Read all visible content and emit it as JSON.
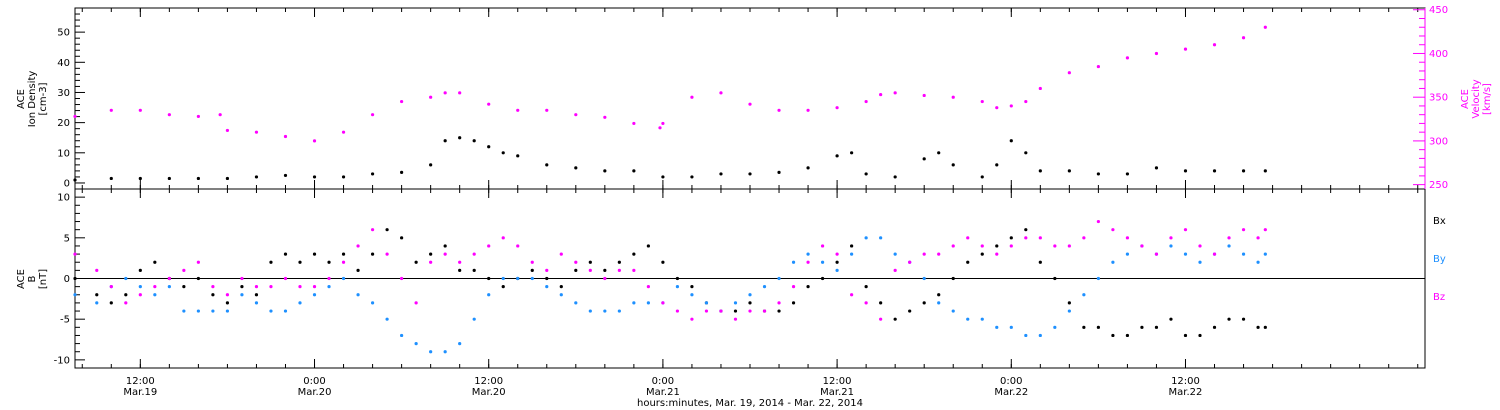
{
  "colors": {
    "black": "#000000",
    "magenta": "#ff00ff",
    "blue": "#1e90ff"
  },
  "x_axis": {
    "title": "hours:minutes, Mar. 19, 2014 - Mar. 22, 2014",
    "range_hours": [
      7.5,
      100.5
    ],
    "ticks": [
      {
        "hours": 12,
        "time": "12:00",
        "date": "Mar.19"
      },
      {
        "hours": 24,
        "time": "0:00",
        "date": "Mar.20"
      },
      {
        "hours": 36,
        "time": "12:00",
        "date": "Mar.20"
      },
      {
        "hours": 48,
        "time": "0:00",
        "date": "Mar.21"
      },
      {
        "hours": 60,
        "time": "12:00",
        "date": "Mar.21"
      },
      {
        "hours": 72,
        "time": "0:00",
        "date": "Mar.22"
      },
      {
        "hours": 84,
        "time": "12:00",
        "date": "Mar.22"
      }
    ]
  },
  "chart_data": [
    {
      "type": "scatter",
      "panel": "top",
      "ylabel_left": [
        "ACE",
        "Ion Density",
        "[cm-3]"
      ],
      "ylabel_right": [
        "ACE",
        "Velocity",
        "[km/s]"
      ],
      "ylim_left": [
        -2,
        58
      ],
      "ylim_right": [
        245,
        452
      ],
      "yticks_left": [
        0,
        10,
        20,
        30,
        40,
        50
      ],
      "yticks_right": [
        250,
        300,
        350,
        400,
        450
      ],
      "series": [
        {
          "axis": "left",
          "color": "#000000",
          "x": [
            7.5,
            10,
            12,
            14,
            16,
            18,
            20,
            22,
            24,
            26,
            28,
            30,
            32,
            33,
            34,
            35,
            36,
            37,
            38,
            40,
            42,
            44,
            46,
            48,
            50,
            52,
            54,
            56,
            58,
            60,
            61,
            62,
            64,
            66,
            67,
            68,
            70,
            71,
            72,
            73,
            74,
            76,
            78,
            80,
            82,
            84,
            86,
            88,
            89.5
          ],
          "y": [
            1,
            1.5,
            1.5,
            1.5,
            1.5,
            1.5,
            2,
            2.5,
            2,
            2,
            3,
            3.5,
            6,
            14,
            15,
            14,
            12,
            10,
            9,
            6,
            5,
            4,
            4,
            2,
            2,
            3,
            3,
            3.5,
            5,
            9,
            10,
            3,
            2,
            8,
            10,
            6,
            2,
            6,
            14,
            10,
            4,
            4,
            3,
            3,
            5,
            4,
            4,
            4,
            4
          ]
        },
        {
          "axis": "right",
          "color": "#ff00ff",
          "x": [
            7.5,
            10,
            12,
            14,
            16,
            17.5,
            18,
            20,
            22,
            24,
            26,
            28,
            30,
            32,
            33,
            34,
            36,
            38,
            40,
            42,
            44,
            46,
            47.8,
            48,
            50,
            52,
            54,
            56,
            58,
            60,
            62,
            63,
            64,
            66,
            68,
            70,
            71,
            72,
            73,
            74,
            76,
            78,
            80,
            82,
            84,
            86,
            88,
            89.5
          ],
          "y": [
            328,
            335,
            335,
            330,
            328,
            330,
            312,
            310,
            305,
            300,
            310,
            330,
            345,
            350,
            355,
            355,
            342,
            335,
            335,
            330,
            327,
            320,
            315,
            320,
            350,
            355,
            342,
            335,
            335,
            338,
            345,
            353,
            355,
            352,
            350,
            345,
            338,
            340,
            345,
            360,
            378,
            385,
            395,
            400,
            405,
            410,
            418,
            430
          ]
        }
      ]
    },
    {
      "type": "scatter",
      "panel": "bottom",
      "ylabel_left": [
        "ACE",
        "B",
        "[nT]"
      ],
      "ylim": [
        -11,
        11
      ],
      "yticks": [
        -10,
        -5,
        0,
        5,
        10
      ],
      "legend": [
        "Bx",
        "By",
        "Bz"
      ],
      "series": [
        {
          "name": "Bx",
          "color": "#000000",
          "x": [
            7.5,
            9,
            10,
            11,
            12,
            13,
            14,
            15,
            16,
            17,
            18,
            19,
            20,
            21,
            22,
            23,
            24,
            25,
            26,
            27,
            28,
            29,
            30,
            31,
            32,
            33,
            34,
            35,
            36,
            37,
            38,
            39,
            40,
            41,
            42,
            43,
            44,
            45,
            46,
            47,
            48,
            49,
            50,
            51,
            52,
            53,
            54,
            55,
            56,
            57,
            58,
            59,
            60,
            61,
            62,
            63,
            64,
            65,
            66,
            67,
            68,
            69,
            70,
            71,
            72,
            73,
            74,
            75,
            76,
            77,
            78,
            79,
            80,
            81,
            82,
            83,
            84,
            85,
            86,
            87,
            88,
            89,
            89.5
          ],
          "y": [
            0,
            -2,
            -3,
            -2,
            1,
            2,
            0,
            -1,
            0,
            -2,
            -3,
            -1,
            -2,
            2,
            3,
            2,
            3,
            2,
            3,
            1,
            3,
            6,
            5,
            2,
            3,
            4,
            1,
            1,
            0,
            -1,
            0,
            1,
            0,
            -1,
            1,
            2,
            1,
            2,
            3,
            4,
            2,
            0,
            -1,
            -3,
            -4,
            -4,
            -3,
            -4,
            -4,
            -3,
            -1,
            0,
            2,
            4,
            -1,
            -3,
            -5,
            -4,
            -3,
            -2,
            0,
            2,
            3,
            4,
            5,
            6,
            2,
            0,
            -3,
            -6,
            -6,
            -7,
            -7,
            -6,
            -6,
            -5,
            -7,
            -7,
            -6,
            -5,
            -5,
            -6,
            -6
          ]
        },
        {
          "name": "By",
          "color": "#1e90ff",
          "x": [
            7.5,
            9,
            10,
            11,
            12,
            13,
            14,
            15,
            16,
            17,
            18,
            19,
            20,
            21,
            22,
            23,
            24,
            25,
            26,
            27,
            28,
            29,
            30,
            31,
            32,
            33,
            34,
            35,
            36,
            37,
            38,
            39,
            40,
            41,
            42,
            43,
            44,
            45,
            46,
            47,
            48,
            49,
            50,
            51,
            52,
            53,
            54,
            55,
            56,
            57,
            58,
            59,
            60,
            61,
            62,
            63,
            64,
            65,
            66,
            67,
            68,
            69,
            70,
            71,
            72,
            73,
            74,
            75,
            76,
            77,
            78,
            79,
            80,
            81,
            82,
            83,
            84,
            85,
            86,
            87,
            88,
            89,
            89.5
          ],
          "y": [
            -2,
            -3,
            -1,
            0,
            -1,
            -2,
            -1,
            -4,
            -4,
            -4,
            -4,
            -2,
            -3,
            -4,
            -4,
            -3,
            -2,
            -1,
            0,
            -2,
            -3,
            -5,
            -7,
            -8,
            -9,
            -9,
            -8,
            -5,
            -2,
            0,
            0,
            0,
            -1,
            -2,
            -3,
            -4,
            -4,
            -4,
            -3,
            -3,
            -3,
            -1,
            -2,
            -3,
            -4,
            -3,
            -2,
            -1,
            0,
            2,
            3,
            2,
            1,
            3,
            5,
            5,
            3,
            2,
            0,
            -3,
            -4,
            -5,
            -5,
            -6,
            -6,
            -7,
            -7,
            -6,
            -4,
            -2,
            0,
            2,
            3,
            4,
            3,
            4,
            3,
            2,
            3,
            4,
            3,
            2,
            3
          ]
        },
        {
          "name": "Bz",
          "color": "#ff00ff",
          "x": [
            7.5,
            9,
            10,
            11,
            12,
            13,
            14,
            15,
            16,
            17,
            18,
            19,
            20,
            21,
            22,
            23,
            24,
            25,
            26,
            27,
            28,
            29,
            30,
            31,
            32,
            33,
            34,
            35,
            36,
            37,
            38,
            39,
            40,
            41,
            42,
            43,
            44,
            45,
            46,
            47,
            48,
            49,
            50,
            51,
            52,
            53,
            54,
            55,
            56,
            57,
            58,
            59,
            60,
            61,
            62,
            63,
            64,
            65,
            66,
            67,
            68,
            69,
            70,
            71,
            72,
            73,
            74,
            75,
            76,
            77,
            78,
            79,
            80,
            81,
            82,
            83,
            84,
            85,
            86,
            87,
            88,
            89,
            89.5
          ],
          "y": [
            3,
            1,
            -1,
            -3,
            -2,
            -1,
            0,
            1,
            2,
            -1,
            -2,
            0,
            -1,
            -1,
            0,
            -1,
            -1,
            0,
            2,
            4,
            6,
            3,
            0,
            -3,
            2,
            3,
            2,
            3,
            4,
            5,
            4,
            2,
            1,
            3,
            2,
            1,
            0,
            1,
            1,
            -1,
            -3,
            -4,
            -5,
            -4,
            -4,
            -5,
            -4,
            -4,
            -3,
            -1,
            2,
            4,
            3,
            -2,
            -3,
            -5,
            1,
            2,
            3,
            3,
            4,
            5,
            4,
            3,
            4,
            5,
            5,
            4,
            4,
            5,
            7,
            6,
            5,
            4,
            3,
            5,
            6,
            4,
            3,
            5,
            6,
            5,
            6
          ]
        }
      ]
    }
  ]
}
